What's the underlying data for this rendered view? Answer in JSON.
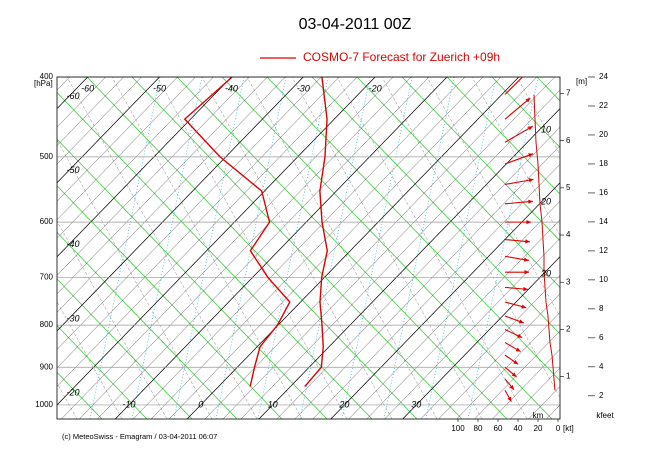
{
  "chart_data": {
    "type": "emagram",
    "title": "03-04-2011  00Z",
    "legend": "COSMO-7 Forecast for Zuerich   +09h",
    "footer": "(c) MeteoSwiss - Emagram  /  03-04-2011  06:07",
    "y_label": "[hPa]",
    "y_log": true,
    "ylim": [
      400,
      1040
    ],
    "yticks": [
      400,
      500,
      600,
      700,
      800,
      900,
      1000
    ],
    "xlim": [
      -20,
      50
    ],
    "isotherms": [
      -60,
      -50,
      -40,
      -30,
      -20,
      -10,
      0,
      10,
      20,
      30
    ],
    "pressure": [
      400,
      450,
      500,
      550,
      600,
      650,
      700,
      750,
      800,
      850,
      900,
      950
    ],
    "series": [
      {
        "color": "#e00000",
        "values": [
          -27.4,
          -21.0,
          -16.2,
          -12.3,
          -7.8,
          -3.2,
          -0.4,
          2.7,
          6.1,
          9.2,
          11.7,
          12.0
        ]
      },
      {
        "color": "#e00000",
        "values": [
          -39.9,
          -40.8,
          -30.8,
          -20.4,
          -15.1,
          -13.9,
          -7.9,
          -1.5,
          -0.1,
          0.4,
          2.4,
          4.4
        ]
      }
    ],
    "wind_pressure": [
      420,
      450,
      480,
      510,
      540,
      570,
      600,
      630,
      660,
      690,
      720,
      750,
      780,
      810,
      840,
      870,
      900,
      930,
      960
    ],
    "wind_speed": [
      24,
      23,
      22,
      20,
      19,
      18,
      16,
      15,
      14,
      14,
      13,
      12,
      10,
      9,
      8,
      6,
      5,
      4,
      3
    ],
    "wind_dir": [
      225,
      230,
      240,
      250,
      260,
      265,
      270,
      275,
      280,
      270,
      275,
      285,
      290,
      295,
      300,
      305,
      310,
      320,
      330
    ],
    "wind_color": "#e00000",
    "wind_xlim": [
      0,
      100
    ],
    "wind_xticks": [
      100,
      80,
      60,
      40,
      20,
      0
    ],
    "wind_unit": "[kt]",
    "height_unit": "[m]",
    "km_label": "km",
    "km_lim": [
      0.1,
      7.35
    ],
    "km_ticks": [
      1,
      2,
      3,
      4,
      5,
      6,
      7
    ],
    "kfeet_label": "kfeet",
    "kfeet_lim": [
      0.4,
      24
    ],
    "kfeet_ticks": [
      2,
      4,
      6,
      8,
      10,
      12,
      14,
      16,
      18,
      20,
      22,
      24
    ],
    "right_labels": [
      10,
      20,
      30
    ]
  }
}
